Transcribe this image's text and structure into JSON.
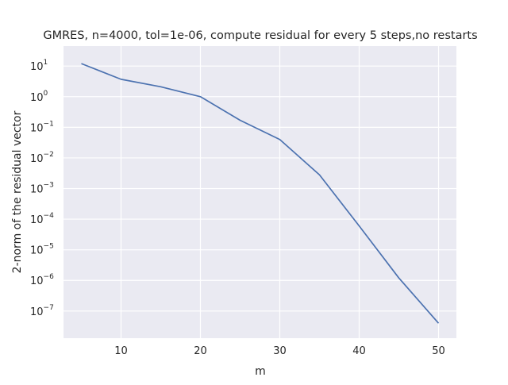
{
  "chart_data": {
    "type": "line",
    "title": "GMRES, n=4000, tol=1e-06, compute residual for every 5 steps,no restarts",
    "xlabel": "m",
    "ylabel": "2-norm of the residual vector",
    "yscale": "log",
    "xlim": [
      2.75,
      52.25
    ],
    "ylim": [
      1.3e-08,
      45
    ],
    "x_ticks": [
      10,
      20,
      30,
      40,
      50
    ],
    "y_tick_exponents": [
      1,
      0,
      -1,
      -2,
      -3,
      -4,
      -5,
      -6,
      -7
    ],
    "grid": true,
    "colors": {
      "background": "#EAEAF2",
      "grid": "#FFFFFF",
      "line": "#4C72B0"
    },
    "series": [
      {
        "x": [
          5,
          10,
          15,
          20,
          25,
          30,
          35,
          40,
          45,
          50
        ],
        "values": [
          12,
          3.7,
          2.1,
          1.0,
          0.17,
          0.04,
          0.0028,
          6e-05,
          1.2e-06,
          4e-08
        ]
      }
    ]
  }
}
